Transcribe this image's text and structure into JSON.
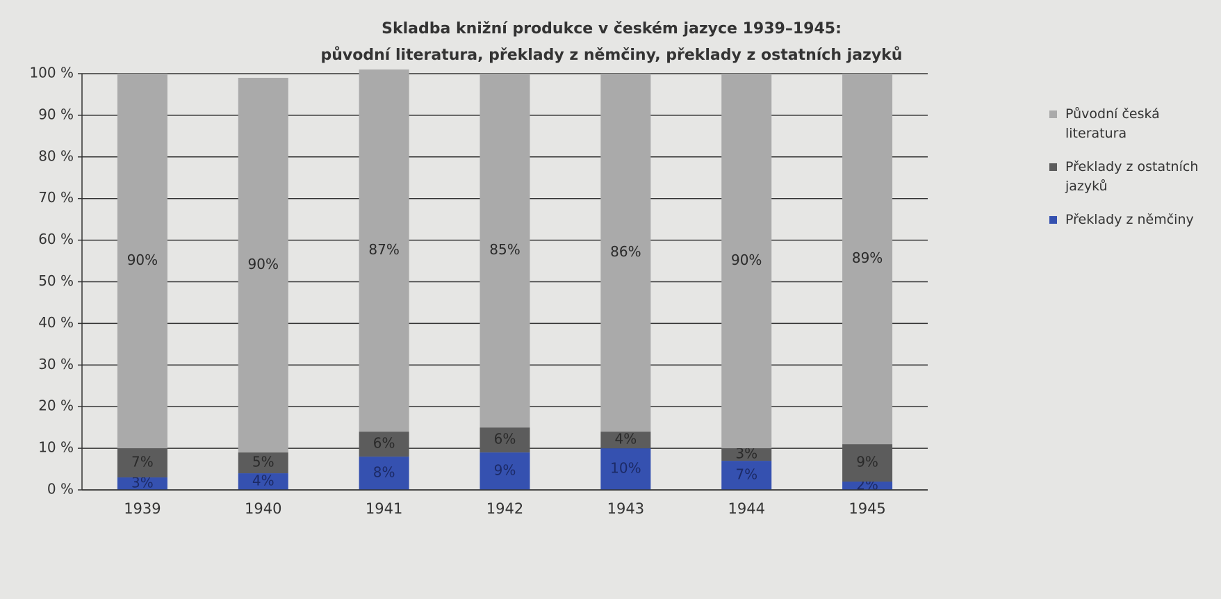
{
  "chart_data": {
    "type": "stacked_bar",
    "title": "Skladba knižní produkce v českém jazyce 1939–1945:",
    "subtitle": "původní literatura, překlady z němčiny, překlady z ostatních jazyků",
    "categories": [
      "1939",
      "1940",
      "1941",
      "1942",
      "1943",
      "1944",
      "1945"
    ],
    "series": [
      {
        "name": "Překlady z němčiny",
        "color": "#3551b0",
        "values": [
          3,
          4,
          8,
          9,
          10,
          7,
          2
        ],
        "value_labels": [
          "3%",
          "4%",
          "8%",
          "9%",
          "10%",
          "7%",
          "2%"
        ]
      },
      {
        "name": "Překlady z ostatních jazyků",
        "color": "#5c5c5c",
        "values": [
          7,
          5,
          6,
          6,
          4,
          3,
          9
        ],
        "value_labels": [
          "7%",
          "5%",
          "6%",
          "6%",
          "4%",
          "3%",
          "9%"
        ]
      },
      {
        "name": "Původní česká literatura",
        "color": "#aaaaaa",
        "values": [
          90,
          90,
          87,
          85,
          86,
          90,
          89
        ],
        "value_labels": [
          "90%",
          "90%",
          "87%",
          "85%",
          "86%",
          "90%",
          "89%"
        ]
      }
    ],
    "ylim": [
      0,
      100
    ],
    "yticks": [
      {
        "value": 0,
        "label": "0 %"
      },
      {
        "value": 10,
        "label": "10 %"
      },
      {
        "value": 20,
        "label": "20 %"
      },
      {
        "value": 30,
        "label": "30 %"
      },
      {
        "value": 40,
        "label": "40 %"
      },
      {
        "value": 50,
        "label": "50 %"
      },
      {
        "value": 60,
        "label": "60 %"
      },
      {
        "value": 70,
        "label": "70 %"
      },
      {
        "value": 80,
        "label": "80 %"
      },
      {
        "value": 90,
        "label": "90 %"
      },
      {
        "value": 100,
        "label": "100 %"
      }
    ],
    "grid": true,
    "legend": "right"
  }
}
